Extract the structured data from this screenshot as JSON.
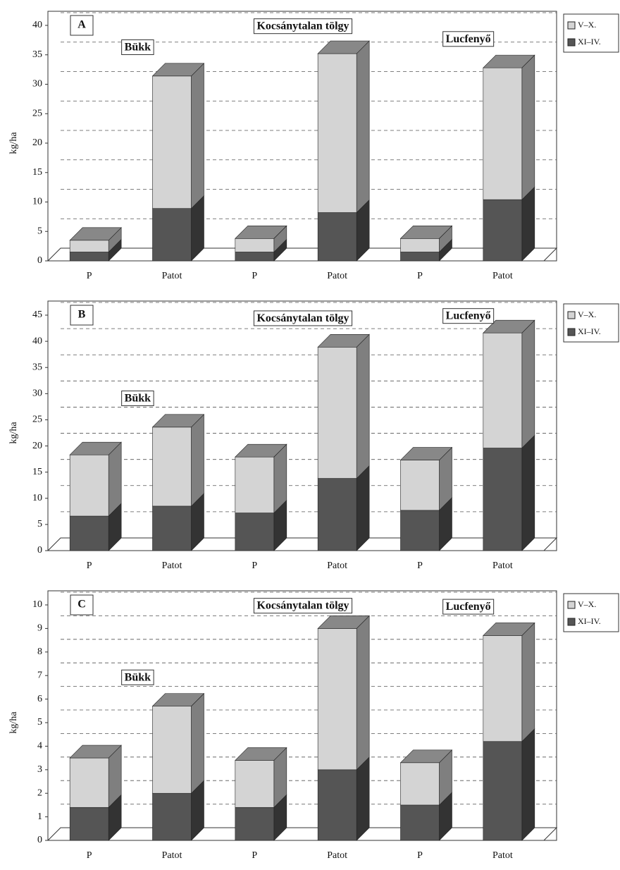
{
  "chart_data": [
    {
      "type": "bar",
      "stacked": true,
      "panel": "A",
      "y_label": "kg/ha",
      "groups": [
        "Bükk",
        "Kocsánytalan tölgy",
        "Lucfenyő"
      ],
      "categories": [
        "P",
        "Patot",
        "P",
        "Patot",
        "P",
        "Patot"
      ],
      "series": [
        {
          "name": "XI–IV.",
          "color": "#555555",
          "values": [
            1.5,
            8.9,
            1.5,
            8.2,
            1.5,
            10.4
          ]
        },
        {
          "name": "V–X.",
          "color": "#d4d4d4",
          "values": [
            2,
            22.5,
            2.3,
            27,
            2.3,
            22.4
          ]
        }
      ],
      "ylim": [
        0,
        40
      ],
      "yticks": [
        0,
        5,
        10,
        15,
        20,
        25,
        30,
        35,
        40
      ],
      "grid": true
    },
    {
      "type": "bar",
      "stacked": true,
      "panel": "B",
      "y_label": "kg/ha",
      "groups": [
        "Bükk",
        "Kocsánytalan tölgy",
        "Lucfenyő"
      ],
      "categories": [
        "P",
        "Patot",
        "P",
        "Patot",
        "P",
        "Patot"
      ],
      "series": [
        {
          "name": "XI–IV.",
          "color": "#555555",
          "values": [
            6.6,
            8.5,
            7.2,
            13.8,
            7.7,
            19.6
          ]
        },
        {
          "name": "V–X.",
          "color": "#d4d4d4",
          "values": [
            11.7,
            15.1,
            10.7,
            25.1,
            9.6,
            22
          ]
        }
      ],
      "ylim": [
        0,
        45
      ],
      "yticks": [
        0,
        5,
        10,
        15,
        20,
        25,
        30,
        35,
        40,
        45
      ],
      "grid": true
    },
    {
      "type": "bar",
      "stacked": true,
      "panel": "C",
      "y_label": "kg/ha",
      "groups": [
        "Bükk",
        "Kocsánytalan tölgy",
        "Lucfenyő"
      ],
      "categories": [
        "P",
        "Patot",
        "P",
        "Patot",
        "P",
        "Patot"
      ],
      "series": [
        {
          "name": "XI–IV.",
          "color": "#555555",
          "values": [
            1.4,
            2.0,
            1.4,
            3.0,
            1.5,
            4.2
          ]
        },
        {
          "name": "V–X.",
          "color": "#d4d4d4",
          "values": [
            2.1,
            3.7,
            2.0,
            6.0,
            1.8,
            4.5
          ]
        }
      ],
      "ylim": [
        0,
        10
      ],
      "yticks": [
        0,
        1,
        2,
        3,
        4,
        5,
        6,
        7,
        8,
        9,
        10
      ],
      "grid": true
    }
  ]
}
